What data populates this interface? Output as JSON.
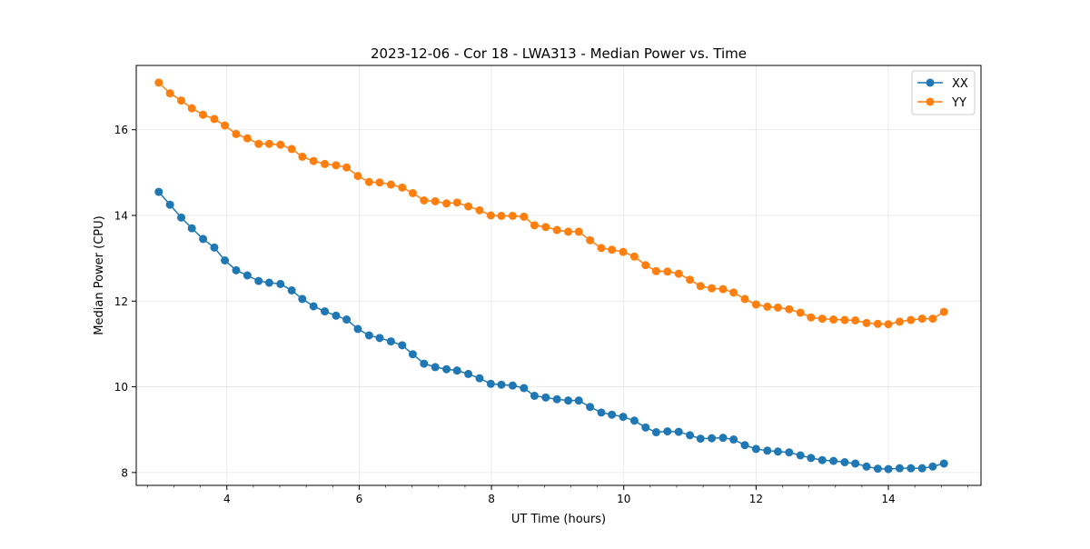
{
  "chart_data": {
    "type": "line",
    "title": "2023-12-06 - Cor 18 - LWA313 - Median Power vs. Time",
    "xlabel": "UT Time (hours)",
    "ylabel": "Median Power (CPU)",
    "xlim": [
      2.63,
      15.4
    ],
    "ylim": [
      7.7,
      17.5
    ],
    "xticks": [
      4,
      6,
      8,
      10,
      12,
      14
    ],
    "yticks": [
      8,
      10,
      12,
      14,
      16
    ],
    "grid": true,
    "legend_position": "top-right",
    "x": [
      2.97,
      3.14,
      3.31,
      3.47,
      3.64,
      3.81,
      3.97,
      4.14,
      4.31,
      4.48,
      4.64,
      4.81,
      4.98,
      5.14,
      5.31,
      5.48,
      5.65,
      5.81,
      5.98,
      6.15,
      6.31,
      6.48,
      6.65,
      6.81,
      6.98,
      7.15,
      7.32,
      7.48,
      7.65,
      7.82,
      7.99,
      8.15,
      8.32,
      8.49,
      8.65,
      8.82,
      8.99,
      9.16,
      9.32,
      9.49,
      9.66,
      9.82,
      9.99,
      10.16,
      10.33,
      10.49,
      10.66,
      10.83,
      11.0,
      11.16,
      11.33,
      11.5,
      11.66,
      11.83,
      12.0,
      12.17,
      12.33,
      12.5,
      12.67,
      12.83,
      13.0,
      13.17,
      13.34,
      13.5,
      13.67,
      13.84,
      14.0,
      14.17,
      14.34,
      14.51,
      14.67,
      14.84
    ],
    "series": [
      {
        "name": "XX",
        "color": "#1f77b4",
        "values": [
          14.55,
          14.25,
          13.95,
          13.7,
          13.45,
          13.25,
          12.95,
          12.72,
          12.6,
          12.47,
          12.43,
          12.4,
          12.25,
          12.05,
          11.88,
          11.76,
          11.66,
          11.57,
          11.35,
          11.2,
          11.14,
          11.06,
          10.97,
          10.76,
          10.54,
          10.46,
          10.41,
          10.38,
          10.3,
          10.2,
          10.07,
          10.05,
          10.03,
          9.97,
          9.79,
          9.75,
          9.71,
          9.68,
          9.68,
          9.53,
          9.4,
          9.35,
          9.3,
          9.21,
          9.05,
          8.94,
          8.96,
          8.95,
          8.87,
          8.79,
          8.8,
          8.81,
          8.77,
          8.64,
          8.55,
          8.51,
          8.49,
          8.47,
          8.4,
          8.34,
          8.29,
          8.27,
          8.24,
          8.21,
          8.14,
          8.09,
          8.08,
          8.1,
          8.1,
          8.1,
          8.14,
          8.21
        ]
      },
      {
        "name": "YY",
        "color": "#ff7f0e",
        "values": [
          17.1,
          16.85,
          16.68,
          16.5,
          16.35,
          16.25,
          16.1,
          15.9,
          15.8,
          15.67,
          15.67,
          15.65,
          15.55,
          15.37,
          15.27,
          15.2,
          15.17,
          15.12,
          14.92,
          14.78,
          14.77,
          14.72,
          14.65,
          14.52,
          14.35,
          14.33,
          14.28,
          14.3,
          14.21,
          14.12,
          14.0,
          13.99,
          13.99,
          13.97,
          13.77,
          13.73,
          13.66,
          13.62,
          13.62,
          13.42,
          13.24,
          13.2,
          13.15,
          13.04,
          12.84,
          12.7,
          12.69,
          12.64,
          12.5,
          12.35,
          12.3,
          12.28,
          12.2,
          12.05,
          11.92,
          11.87,
          11.85,
          11.81,
          11.73,
          11.62,
          11.59,
          11.57,
          11.56,
          11.55,
          11.49,
          11.47,
          11.46,
          11.52,
          11.56,
          11.59,
          11.59,
          11.75
        ]
      }
    ]
  }
}
